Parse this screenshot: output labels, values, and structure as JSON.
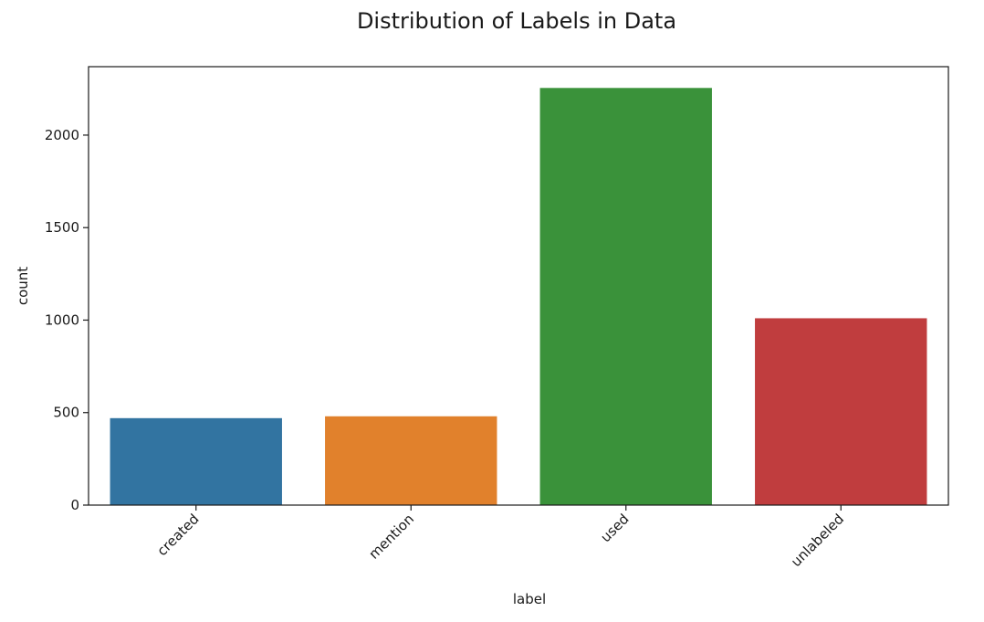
{
  "chart_data": {
    "type": "bar",
    "title": "Distribution of Labels in Data",
    "xlabel": "label",
    "ylabel": "count",
    "categories": [
      "created",
      "mention",
      "used",
      "unlabeled"
    ],
    "values": [
      470,
      480,
      2255,
      1010
    ],
    "colors": [
      "#3274a1",
      "#e1812c",
      "#3a923a",
      "#c03d3e"
    ],
    "ylim": [
      0,
      2370
    ],
    "yticks": [
      0,
      500,
      1000,
      1500,
      2000
    ],
    "grid": false,
    "legend": "none"
  }
}
